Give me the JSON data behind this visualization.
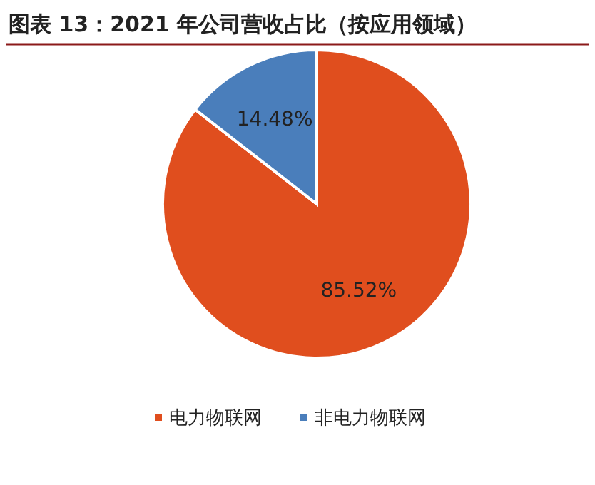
{
  "chart_data": {
    "type": "pie",
    "title": "图表 13：2021 年公司营收占比（按应用领域）",
    "categories": [
      "电力物联网",
      "非电力物联网"
    ],
    "values": [
      85.52,
      14.48
    ],
    "colors": [
      "#e04e1e",
      "#4a7ebb"
    ],
    "value_labels": [
      "85.52%",
      "14.48%"
    ],
    "legend": "bottom"
  }
}
